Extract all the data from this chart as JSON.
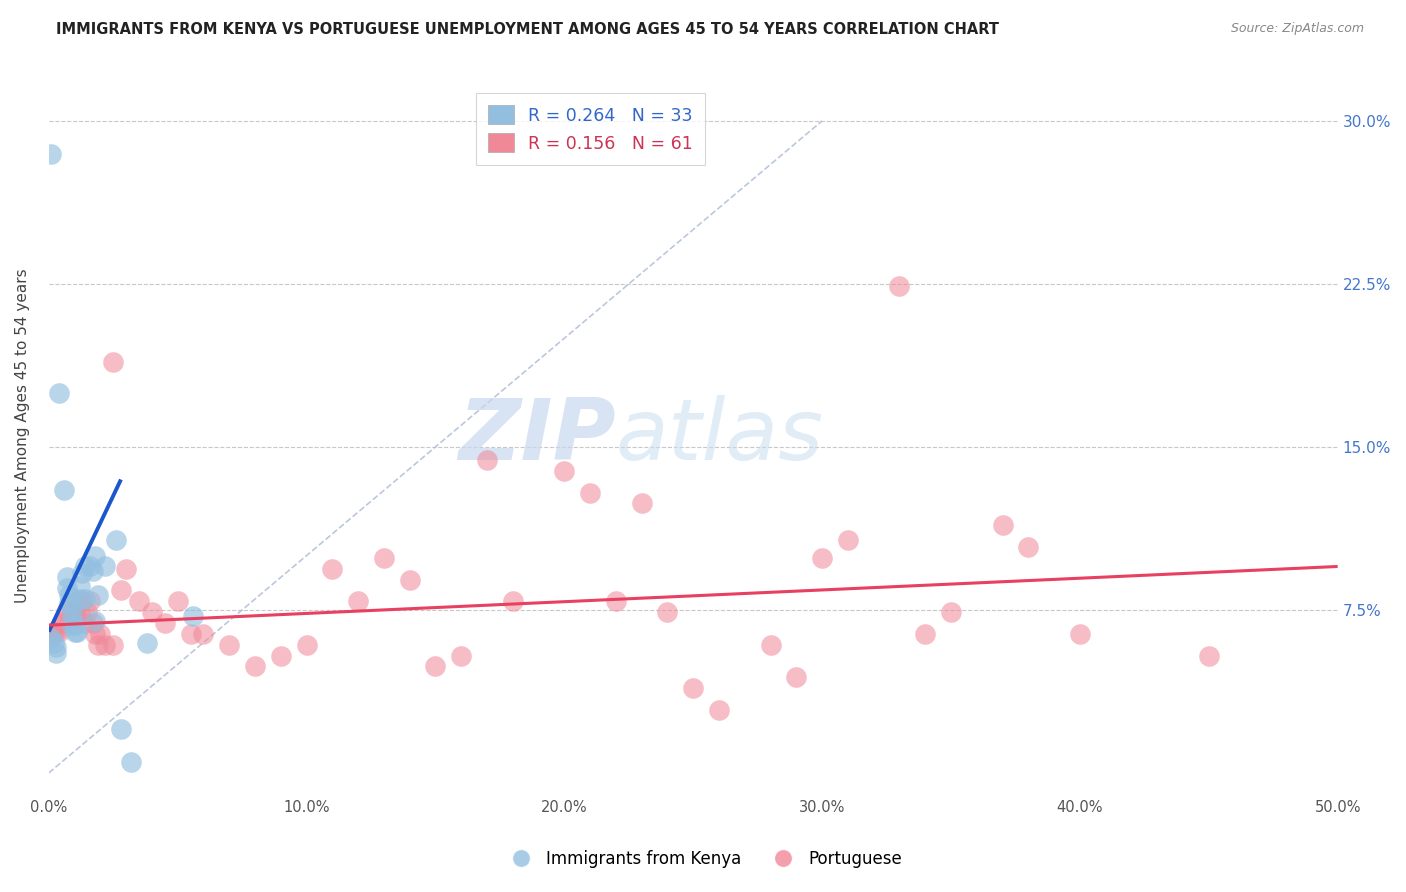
{
  "title": "IMMIGRANTS FROM KENYA VS PORTUGUESE UNEMPLOYMENT AMONG AGES 45 TO 54 YEARS CORRELATION CHART",
  "source": "Source: ZipAtlas.com",
  "ylabel": "Unemployment Among Ages 45 to 54 years",
  "xlim": [
    0,
    0.5
  ],
  "ylim": [
    -0.01,
    0.32
  ],
  "yticks": [
    0.0,
    0.075,
    0.15,
    0.225,
    0.3
  ],
  "yticklabels_right": [
    "",
    "7.5%",
    "15.0%",
    "22.5%",
    "30.0%"
  ],
  "xticks": [
    0.0,
    0.1,
    0.2,
    0.3,
    0.4,
    0.5
  ],
  "xticklabels": [
    "0.0%",
    "10.0%",
    "20.0%",
    "30.0%",
    "40.0%",
    "50.0%"
  ],
  "watermark_zip": "ZIP",
  "watermark_atlas": "atlas",
  "blue_color": "#92bfe0",
  "pink_color": "#f08898",
  "blue_trend_color": "#1a56cc",
  "pink_trend_color": "#e84060",
  "blue_scatter": [
    [
      0.0008,
      0.285
    ],
    [
      0.004,
      0.175
    ],
    [
      0.006,
      0.13
    ],
    [
      0.007,
      0.09
    ],
    [
      0.007,
      0.085
    ],
    [
      0.008,
      0.082
    ],
    [
      0.008,
      0.078
    ],
    [
      0.009,
      0.076
    ],
    [
      0.009,
      0.072
    ],
    [
      0.009,
      0.068
    ],
    [
      0.01,
      0.068
    ],
    [
      0.01,
      0.065
    ],
    [
      0.011,
      0.065
    ],
    [
      0.012,
      0.086
    ],
    [
      0.012,
      0.08
    ],
    [
      0.013,
      0.092
    ],
    [
      0.014,
      0.095
    ],
    [
      0.014,
      0.08
    ],
    [
      0.016,
      0.095
    ],
    [
      0.017,
      0.093
    ],
    [
      0.018,
      0.1
    ],
    [
      0.018,
      0.07
    ],
    [
      0.019,
      0.082
    ],
    [
      0.022,
      0.095
    ],
    [
      0.026,
      0.107
    ],
    [
      0.028,
      0.02
    ],
    [
      0.032,
      0.005
    ],
    [
      0.038,
      0.06
    ],
    [
      0.056,
      0.072
    ],
    [
      0.001,
      0.062
    ],
    [
      0.002,
      0.06
    ],
    [
      0.003,
      0.058
    ],
    [
      0.003,
      0.055
    ]
  ],
  "pink_scatter": [
    [
      0.001,
      0.064
    ],
    [
      0.002,
      0.065
    ],
    [
      0.003,
      0.065
    ],
    [
      0.004,
      0.065
    ],
    [
      0.005,
      0.069
    ],
    [
      0.006,
      0.07
    ],
    [
      0.007,
      0.075
    ],
    [
      0.008,
      0.07
    ],
    [
      0.009,
      0.074
    ],
    [
      0.01,
      0.074
    ],
    [
      0.011,
      0.079
    ],
    [
      0.012,
      0.074
    ],
    [
      0.013,
      0.079
    ],
    [
      0.014,
      0.069
    ],
    [
      0.015,
      0.074
    ],
    [
      0.016,
      0.079
    ],
    [
      0.017,
      0.069
    ],
    [
      0.018,
      0.064
    ],
    [
      0.019,
      0.059
    ],
    [
      0.02,
      0.064
    ],
    [
      0.022,
      0.059
    ],
    [
      0.025,
      0.059
    ],
    [
      0.028,
      0.084
    ],
    [
      0.03,
      0.094
    ],
    [
      0.035,
      0.079
    ],
    [
      0.04,
      0.074
    ],
    [
      0.045,
      0.069
    ],
    [
      0.05,
      0.079
    ],
    [
      0.055,
      0.064
    ],
    [
      0.06,
      0.064
    ],
    [
      0.07,
      0.059
    ],
    [
      0.08,
      0.049
    ],
    [
      0.09,
      0.054
    ],
    [
      0.1,
      0.059
    ],
    [
      0.11,
      0.094
    ],
    [
      0.12,
      0.079
    ],
    [
      0.13,
      0.099
    ],
    [
      0.14,
      0.089
    ],
    [
      0.15,
      0.049
    ],
    [
      0.16,
      0.054
    ],
    [
      0.17,
      0.144
    ],
    [
      0.18,
      0.079
    ],
    [
      0.2,
      0.139
    ],
    [
      0.21,
      0.129
    ],
    [
      0.22,
      0.079
    ],
    [
      0.23,
      0.124
    ],
    [
      0.24,
      0.074
    ],
    [
      0.25,
      0.039
    ],
    [
      0.26,
      0.029
    ],
    [
      0.28,
      0.059
    ],
    [
      0.29,
      0.044
    ],
    [
      0.3,
      0.099
    ],
    [
      0.31,
      0.107
    ],
    [
      0.33,
      0.224
    ],
    [
      0.34,
      0.064
    ],
    [
      0.35,
      0.074
    ],
    [
      0.37,
      0.114
    ],
    [
      0.38,
      0.104
    ],
    [
      0.4,
      0.064
    ],
    [
      0.45,
      0.054
    ],
    [
      0.025,
      0.189
    ]
  ]
}
